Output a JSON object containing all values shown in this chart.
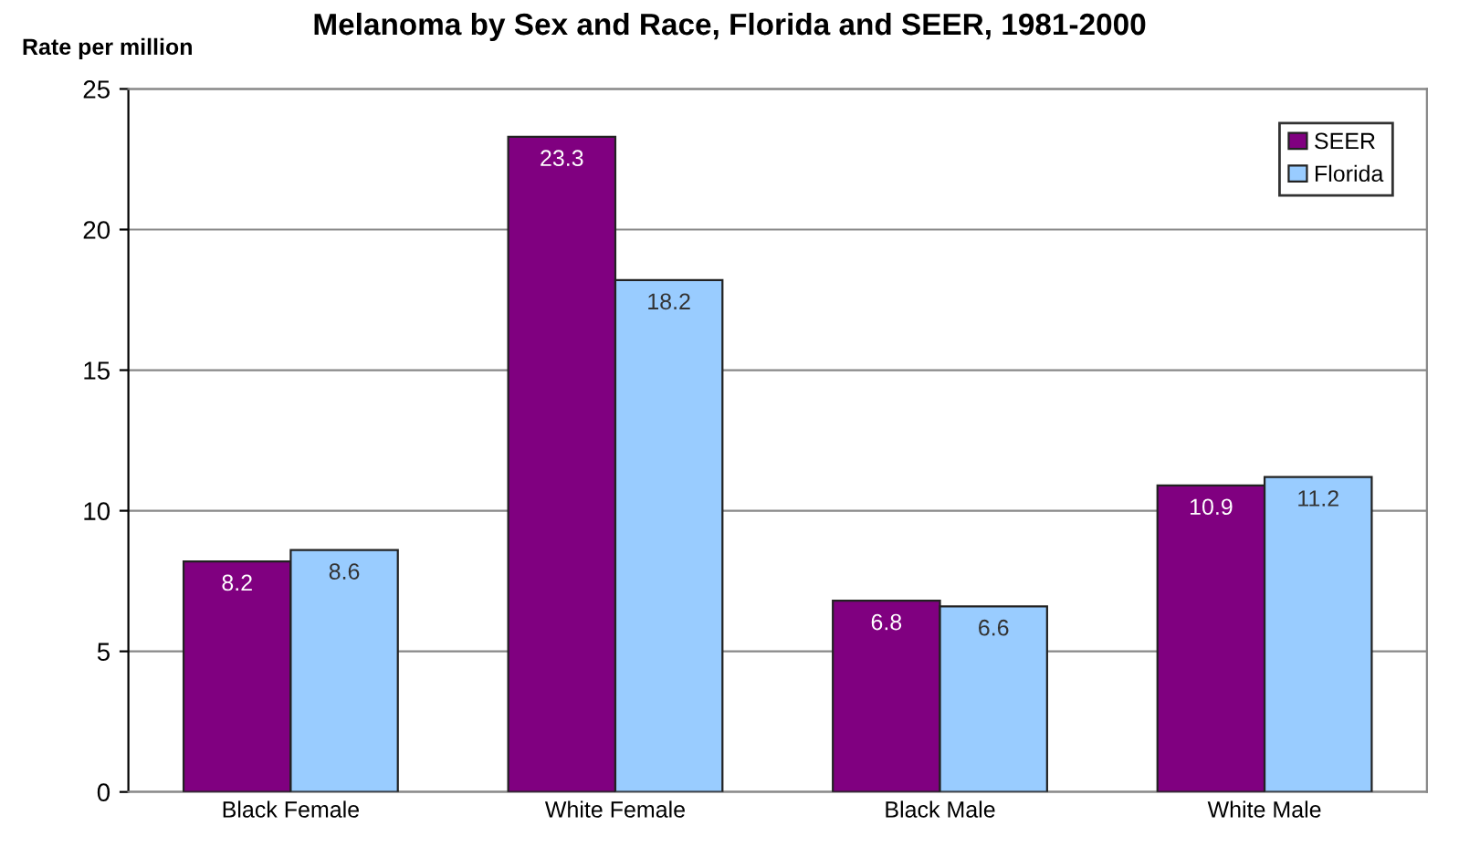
{
  "chart_data": {
    "type": "bar",
    "title": "Melanoma by Sex and Race, Florida and SEER, 1981-2000",
    "ylabel": "Rate per million",
    "categories": [
      "Black Female",
      "White Female",
      "Black Male",
      "White Male"
    ],
    "series": [
      {
        "name": "SEER",
        "color": "#800080",
        "values": [
          8.2,
          23.3,
          6.8,
          10.9
        ]
      },
      {
        "name": "Florida",
        "color": "#99ccff",
        "values": [
          8.6,
          18.2,
          6.6,
          11.2
        ]
      }
    ],
    "ylim": [
      0,
      25
    ],
    "yticks": [
      0,
      5,
      10,
      15,
      20,
      25
    ],
    "grid": "y",
    "legend": "top right",
    "data_labels": true
  }
}
